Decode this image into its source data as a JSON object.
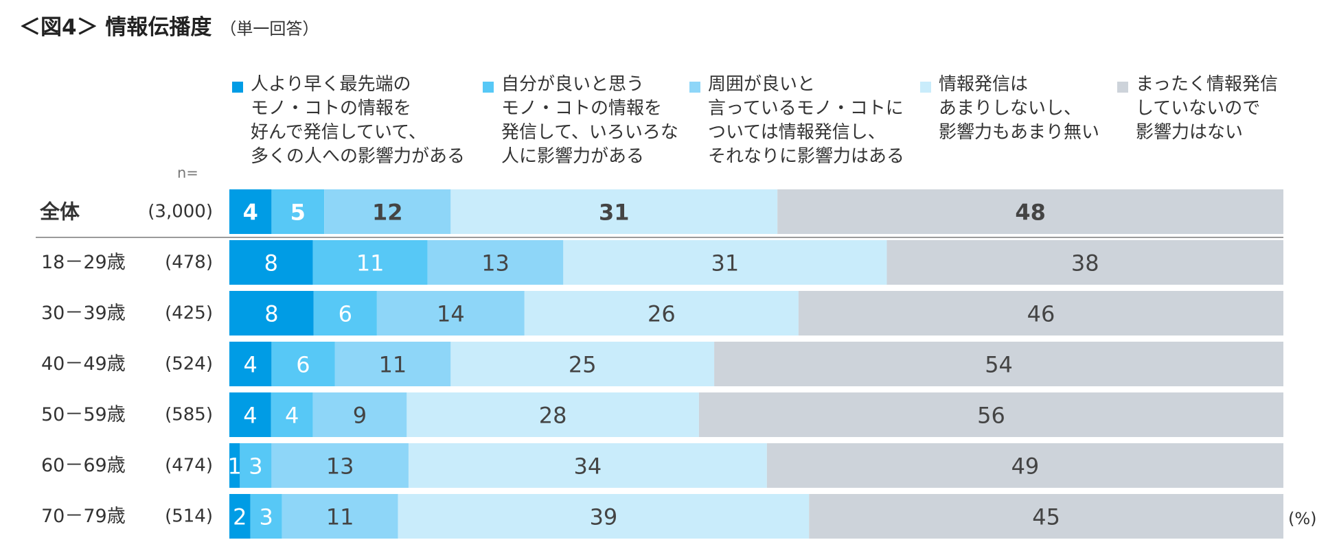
{
  "page": {
    "title": "＜図4＞ 情報伝播度",
    "subtitle": "（単一回答）",
    "n_label": "n=",
    "unit": "(%)"
  },
  "chart_data": {
    "type": "bar",
    "orientation": "horizontal",
    "stacked": true,
    "percent_stacked": true,
    "xlim": [
      0,
      100
    ],
    "legend_position": "top",
    "categories": [
      "全体",
      "18－29歳",
      "30－39歳",
      "40－49歳",
      "50－59歳",
      "60－69歳",
      "70－79歳"
    ],
    "n": [
      "(3,000)",
      "(478)",
      "(425)",
      "(524)",
      "(585)",
      "(474)",
      "(514)"
    ],
    "series": [
      {
        "name": "人より早く最先端の\nモノ・コトの情報を\n好んで発信していて、\n多くの人への影響力がある",
        "color": "#009ce5",
        "label_color": "#ffffff",
        "values": [
          4,
          8,
          8,
          4,
          4,
          1,
          2
        ]
      },
      {
        "name": "自分が良いと思う\nモノ・コトの情報を\n発信して、いろいろな\n人に影響力がある",
        "color": "#57c8f6",
        "label_color": "#ffffff",
        "values": [
          5,
          11,
          6,
          6,
          4,
          3,
          3
        ]
      },
      {
        "name": "周囲が良いと\n言っているモノ・コトに\nついては情報発信し、\nそれなりに影響力はある",
        "color": "#8ed6f8",
        "label_color": "#444444",
        "values": [
          12,
          13,
          14,
          11,
          9,
          13,
          11
        ]
      },
      {
        "name": "情報発信は\nあまりしないし、\n影響力もあまり無い",
        "color": "#c9ecfb",
        "label_color": "#444444",
        "values": [
          31,
          31,
          26,
          25,
          28,
          34,
          39
        ]
      },
      {
        "name": "まったく情報発信\nしていないので\n影響力はない",
        "color": "#cdd3da",
        "label_color": "#444444",
        "values": [
          48,
          38,
          46,
          54,
          56,
          49,
          45
        ]
      }
    ]
  }
}
